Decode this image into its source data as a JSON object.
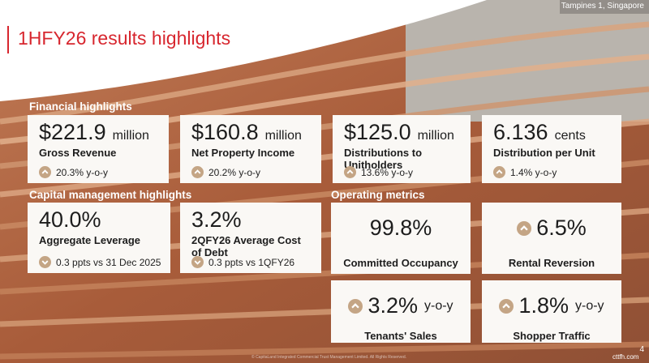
{
  "header": {
    "location": "Tampines 1, Singapore",
    "title": "1HFY26 results highlights",
    "page": "4"
  },
  "financial": {
    "heading": "Financial highlights",
    "cards": [
      {
        "value": "$221.9",
        "unit": "million",
        "label": "Gross Revenue",
        "change": "20.3% y-o-y",
        "direction": "up"
      },
      {
        "value": "$160.8",
        "unit": "million",
        "label": "Net Property Income",
        "change": "20.2% y-o-y",
        "direction": "up"
      },
      {
        "value": "$125.0",
        "unit": "million",
        "label": "Distributions to Unitholders",
        "change": "13.6% y-o-y",
        "direction": "up"
      },
      {
        "value": "6.136",
        "unit": "cents",
        "label": "Distribution per Unit",
        "change": "1.4% y-o-y",
        "direction": "up"
      }
    ]
  },
  "capital": {
    "heading": "Capital management highlights",
    "cards": [
      {
        "value": "40.0%",
        "label": "Aggregate Leverage",
        "change": "0.3 ppts vs 31 Dec 2025",
        "direction": "down"
      },
      {
        "value": "3.2%",
        "label": "2QFY26 Average Cost of Debt",
        "change": "0.3 ppts vs 1QFY26",
        "direction": "down"
      }
    ]
  },
  "operating": {
    "heading": "Operating metrics",
    "cards": [
      {
        "value": "99.8%",
        "label": "Committed Occupancy"
      },
      {
        "value": "6.5%",
        "label": "Rental Reversion",
        "direction": "up"
      },
      {
        "value": "3.2%",
        "unit": "y-o-y",
        "label": "Tenants' Sales",
        "direction": "up"
      },
      {
        "value": "1.8%",
        "unit": "y-o-y",
        "label": "Shopper Traffic",
        "direction": "up"
      }
    ]
  },
  "footer": {
    "copyright": "© CapitaLand Integrated Commercial Trust Management Limited. All Rights Reserved.",
    "watermark": "cttfh.com"
  }
}
